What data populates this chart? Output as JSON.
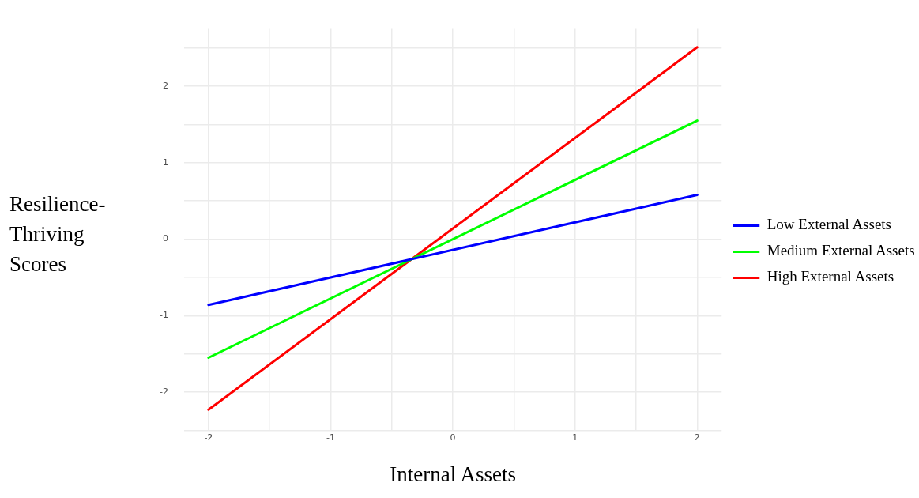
{
  "chart_data": {
    "type": "line",
    "xlabel": "Internal Assets",
    "ylabel": "Resilience-Thriving Scores",
    "x": [
      -2,
      2
    ],
    "series": [
      {
        "name": "Low External Assets",
        "color": "#0000ff",
        "values": [
          -0.86,
          0.58
        ]
      },
      {
        "name": "Medium External Assets",
        "color": "#00ff00",
        "values": [
          -1.55,
          1.55
        ]
      },
      {
        "name": "High External Assets",
        "color": "#ff0000",
        "values": [
          -2.23,
          2.51
        ]
      }
    ],
    "xlim": [
      -2.2,
      2.2
    ],
    "ylim": [
      -2.5,
      2.75
    ],
    "xticks": [
      -2,
      {
        "value": -1.5,
        "label": null
      },
      -1,
      {
        "value": -0.5,
        "label": null
      },
      0,
      {
        "value": 0.5,
        "label": null
      },
      1,
      {
        "value": 1.5,
        "label": null
      },
      2
    ],
    "yticks": [
      {
        "value": -2.5,
        "label": null
      },
      -2,
      {
        "value": -1.5,
        "label": null
      },
      -1,
      {
        "value": -0.5,
        "label": null
      },
      0,
      {
        "value": 0.5,
        "label": null
      },
      1,
      {
        "value": 1.5,
        "label": null
      },
      2,
      {
        "value": 2.5,
        "label": null
      }
    ],
    "grid": true,
    "legend": "right",
    "marker": "none",
    "line_style": "solid"
  }
}
